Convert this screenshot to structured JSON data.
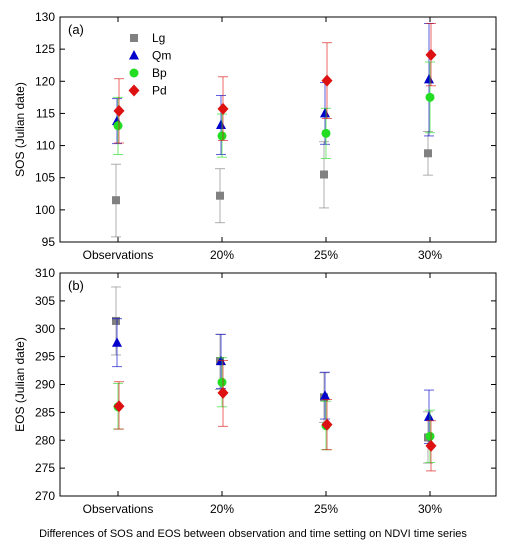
{
  "xlabel": "Differences of SOS and EOS between observation and time setting on NDVI time series",
  "chart_data": [
    {
      "type": "scatter",
      "panel_label": "(a)",
      "ylabel": "SOS (Julian date)",
      "ylim": [
        95,
        130
      ],
      "yticks": [
        95,
        100,
        105,
        110,
        115,
        120,
        125,
        130
      ],
      "categories": [
        "Observations",
        "20%",
        "25%",
        "30%"
      ],
      "legend_position": "top-left",
      "series": [
        {
          "name": "Lg",
          "color": "#808080",
          "marker": "square",
          "values": [
            101.5,
            102.2,
            105.5,
            108.8
          ],
          "err_low": [
            95.8,
            98.0,
            100.3,
            105.4
          ],
          "err_high": [
            107.1,
            106.4,
            110.6,
            112.2
          ]
        },
        {
          "name": "Qm",
          "color": "#0000cc",
          "marker": "triangle",
          "values": [
            113.8,
            113.2,
            115.0,
            120.3
          ],
          "err_low": [
            110.3,
            108.6,
            110.2,
            111.5
          ],
          "err_high": [
            117.3,
            117.8,
            119.8,
            129.0
          ]
        },
        {
          "name": "Bp",
          "color": "#22dd22",
          "marker": "circle",
          "values": [
            113.1,
            111.5,
            111.9,
            117.5
          ],
          "err_low": [
            108.6,
            108.2,
            108.0,
            112.0
          ],
          "err_high": [
            117.5,
            114.9,
            115.8,
            123.0
          ]
        },
        {
          "name": "Pd",
          "color": "#dd1111",
          "marker": "diamond",
          "values": [
            115.4,
            115.7,
            120.1,
            124.1
          ],
          "err_low": [
            110.4,
            110.8,
            114.2,
            119.3
          ],
          "err_high": [
            120.4,
            120.7,
            126.0,
            129.0
          ]
        }
      ]
    },
    {
      "type": "scatter",
      "panel_label": "(b)",
      "ylabel": "EOS (Julian date)",
      "ylim": [
        270,
        310
      ],
      "yticks": [
        270,
        275,
        280,
        285,
        290,
        295,
        300,
        305,
        310
      ],
      "categories": [
        "Observations",
        "20%",
        "25%",
        "30%"
      ],
      "series": [
        {
          "name": "Lg",
          "color": "#808080",
          "marker": "square",
          "values": [
            301.4,
            294.2,
            287.7,
            280.5
          ],
          "err_low": [
            295.3,
            289.1,
            283.2,
            275.9
          ],
          "err_high": [
            307.5,
            299.0,
            292.1,
            285.1
          ]
        },
        {
          "name": "Qm",
          "color": "#0000cc",
          "marker": "triangle",
          "values": [
            297.5,
            294.2,
            288.0,
            284.2
          ],
          "err_low": [
            293.2,
            289.3,
            283.8,
            279.4
          ],
          "err_high": [
            301.8,
            299.0,
            292.2,
            289.0
          ]
        },
        {
          "name": "Bp",
          "color": "#22dd22",
          "marker": "circle",
          "values": [
            286.0,
            290.4,
            282.6,
            280.7
          ],
          "err_low": [
            282.0,
            286.0,
            278.3,
            276.0
          ],
          "err_high": [
            290.2,
            294.8,
            287.0,
            285.4
          ]
        },
        {
          "name": "Pd",
          "color": "#dd1111",
          "marker": "diamond",
          "values": [
            286.1,
            288.5,
            282.8,
            279.0
          ],
          "err_low": [
            282.0,
            282.5,
            278.3,
            274.5
          ],
          "err_high": [
            290.5,
            294.3,
            287.3,
            283.5
          ]
        }
      ]
    }
  ]
}
